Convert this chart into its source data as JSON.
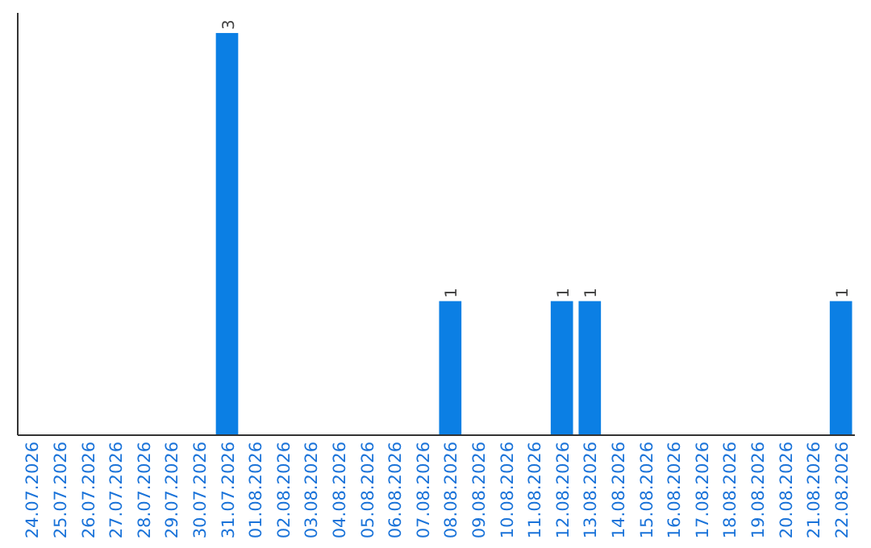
{
  "chart_data": {
    "type": "bar",
    "categories": [
      "24.07.2026",
      "25.07.2026",
      "26.07.2026",
      "27.07.2026",
      "28.07.2026",
      "29.07.2026",
      "30.07.2026",
      "31.07.2026",
      "01.08.2026",
      "02.08.2026",
      "03.08.2026",
      "04.08.2026",
      "05.08.2026",
      "06.08.2026",
      "07.08.2026",
      "08.08.2026",
      "09.08.2026",
      "10.08.2026",
      "11.08.2026",
      "12.08.2026",
      "13.08.2026",
      "14.08.2026",
      "15.08.2026",
      "16.08.2026",
      "17.08.2026",
      "18.08.2026",
      "19.08.2026",
      "20.08.2026",
      "21.08.2026",
      "22.08.2026"
    ],
    "values": [
      0,
      0,
      0,
      0,
      0,
      0,
      0,
      3,
      0,
      0,
      0,
      0,
      0,
      0,
      0,
      1,
      0,
      0,
      0,
      1,
      1,
      0,
      0,
      0,
      0,
      0,
      0,
      0,
      0,
      1
    ],
    "value_labels": [
      null,
      null,
      null,
      null,
      null,
      null,
      null,
      "3",
      null,
      null,
      null,
      null,
      null,
      null,
      null,
      "1",
      null,
      null,
      null,
      "1",
      "1",
      null,
      null,
      null,
      null,
      null,
      null,
      null,
      null,
      "1"
    ],
    "color": "#0b7fe4",
    "grid": false,
    "tick_labels": "x"
  }
}
